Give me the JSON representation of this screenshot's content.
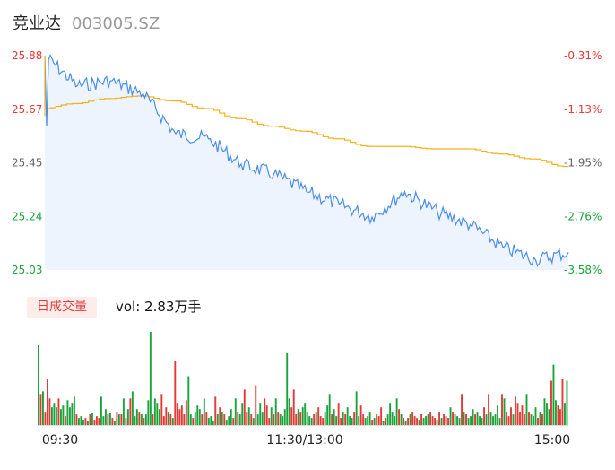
{
  "header": {
    "name": "竞业达",
    "code": "003005.SZ"
  },
  "volume_tag": "日成交量",
  "volume_text": "vol: 2.83万手",
  "colors": {
    "up": "#e53935",
    "down": "#1aa33a",
    "price": "#4a8ee8",
    "avg": "#f2b21c",
    "area": "#eef4fd"
  },
  "chart_data": [
    {
      "type": "line",
      "title": "",
      "series": [
        {
          "name": "price",
          "x": [
            "09:30",
            "09:45",
            "10:00",
            "10:15",
            "10:30",
            "10:45",
            "11:00",
            "11:15",
            "11:30",
            "13:15",
            "13:30",
            "13:45",
            "14:00",
            "14:15",
            "14:30",
            "14:45",
            "15:00"
          ],
          "values": [
            25.88,
            25.76,
            25.78,
            25.73,
            25.57,
            25.55,
            25.45,
            25.41,
            25.34,
            25.29,
            25.24,
            25.34,
            25.26,
            25.21,
            25.12,
            25.07,
            25.1
          ]
        },
        {
          "name": "average",
          "x": [
            "09:30",
            "09:45",
            "10:00",
            "10:15",
            "10:30",
            "10:45",
            "11:00",
            "11:15",
            "11:30",
            "13:15",
            "13:30",
            "13:45",
            "14:00",
            "14:15",
            "14:30",
            "14:45",
            "15:00"
          ],
          "values": [
            25.67,
            25.69,
            25.71,
            25.72,
            25.7,
            25.67,
            25.63,
            25.6,
            25.58,
            25.55,
            25.52,
            25.52,
            25.51,
            25.51,
            25.49,
            25.47,
            25.44
          ]
        }
      ],
      "y_left_ticks": [
        "25.88",
        "25.67",
        "25.45",
        "25.24",
        "25.03"
      ],
      "y_right_ticks": [
        "-0.31%",
        "-1.13%",
        "-1.95%",
        "-2.76%",
        "-3.58%"
      ],
      "ylim": [
        25.03,
        25.88
      ],
      "grid": false
    },
    {
      "type": "bar",
      "title": "",
      "x_ticks": [
        "09:30",
        "11:30/13:00",
        "15:00"
      ],
      "values": [
        90,
        35,
        38,
        15,
        52,
        30,
        20,
        25,
        20,
        30,
        18,
        22,
        10,
        28,
        20,
        25,
        32,
        12,
        8,
        10,
        6,
        8,
        5,
        12,
        14,
        6,
        10,
        8,
        32,
        10,
        18,
        12,
        14,
        8,
        5,
        15,
        12,
        12,
        30,
        8,
        18,
        30,
        38,
        10,
        18,
        15,
        12,
        8,
        12,
        28,
        105,
        12,
        30,
        25,
        18,
        35,
        10,
        20,
        15,
        12,
        8,
        72,
        25,
        18,
        22,
        12,
        28,
        55,
        12,
        8,
        15,
        22,
        18,
        12,
        30,
        15,
        8,
        10,
        5,
        32,
        12,
        20,
        15,
        12,
        6,
        10,
        18,
        8,
        30,
        15,
        12,
        25,
        40,
        15,
        20,
        12,
        8,
        45,
        12,
        25,
        15,
        30,
        22,
        8,
        20,
        12,
        30,
        15,
        12,
        10,
        18,
        82,
        30,
        20,
        40,
        12,
        18,
        15,
        20,
        25,
        15,
        10,
        8,
        12,
        15,
        20,
        10,
        8,
        15,
        22,
        35,
        12,
        18,
        10,
        25,
        8,
        15,
        12,
        20,
        10,
        8,
        15,
        38,
        10,
        22,
        12,
        8,
        10,
        15,
        6,
        8,
        12,
        10,
        20,
        5,
        8,
        12,
        25,
        15,
        10,
        30,
        18,
        12,
        8,
        5,
        8,
        12,
        15,
        10,
        8,
        6,
        12,
        8,
        10,
        12,
        15,
        10,
        8,
        6,
        15,
        8,
        12,
        10,
        8,
        20,
        15,
        12,
        10,
        8,
        35,
        15,
        12,
        8,
        10,
        18,
        12,
        15,
        10,
        8,
        20,
        12,
        35,
        15,
        10,
        12,
        22,
        8,
        35,
        30,
        15,
        10,
        20,
        12,
        32,
        25,
        15,
        22,
        12,
        35,
        15,
        12,
        10,
        20,
        8,
        15,
        12,
        30,
        25,
        18,
        50,
        68,
        28,
        22,
        18,
        52,
        25,
        50
      ]
    }
  ]
}
